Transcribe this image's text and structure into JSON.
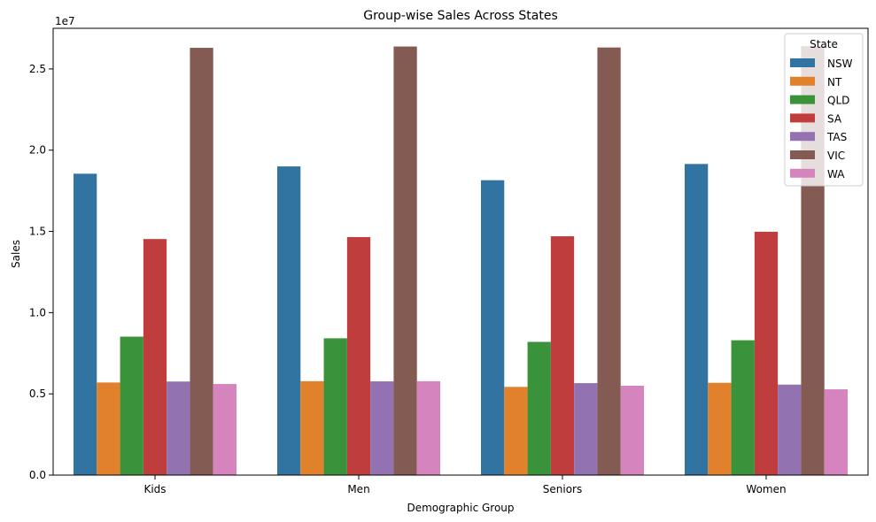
{
  "chart_data": {
    "type": "bar",
    "title": "Group-wise Sales Across States",
    "xlabel": "Demographic Group",
    "ylabel": "Sales",
    "offset_label": "1e7",
    "categories": [
      "Kids",
      "Men",
      "Seniors",
      "Women"
    ],
    "ylim": [
      0,
      27500000
    ],
    "yticks": [
      0,
      5000000,
      10000000,
      15000000,
      20000000,
      25000000
    ],
    "ytick_labels": [
      "0.0",
      "0.5",
      "1.0",
      "1.5",
      "2.0",
      "2.5"
    ],
    "grid": false,
    "legend": {
      "title": "State",
      "placement": "top-right"
    },
    "series": [
      {
        "name": "NSW",
        "color": "#3274a1",
        "values": [
          18550000,
          19000000,
          18150000,
          19150000
        ]
      },
      {
        "name": "NT",
        "color": "#e1812c",
        "values": [
          5700000,
          5780000,
          5430000,
          5680000
        ]
      },
      {
        "name": "QLD",
        "color": "#3a923a",
        "values": [
          8520000,
          8420000,
          8200000,
          8300000
        ]
      },
      {
        "name": "SA",
        "color": "#c03d3e",
        "values": [
          14530000,
          14650000,
          14700000,
          14980000
        ]
      },
      {
        "name": "TAS",
        "color": "#9372b2",
        "values": [
          5760000,
          5770000,
          5660000,
          5570000
        ]
      },
      {
        "name": "VIC",
        "color": "#845b53",
        "values": [
          26300000,
          26380000,
          26320000,
          26400000
        ]
      },
      {
        "name": "WA",
        "color": "#d684bd",
        "values": [
          5610000,
          5780000,
          5500000,
          5280000
        ]
      }
    ]
  }
}
